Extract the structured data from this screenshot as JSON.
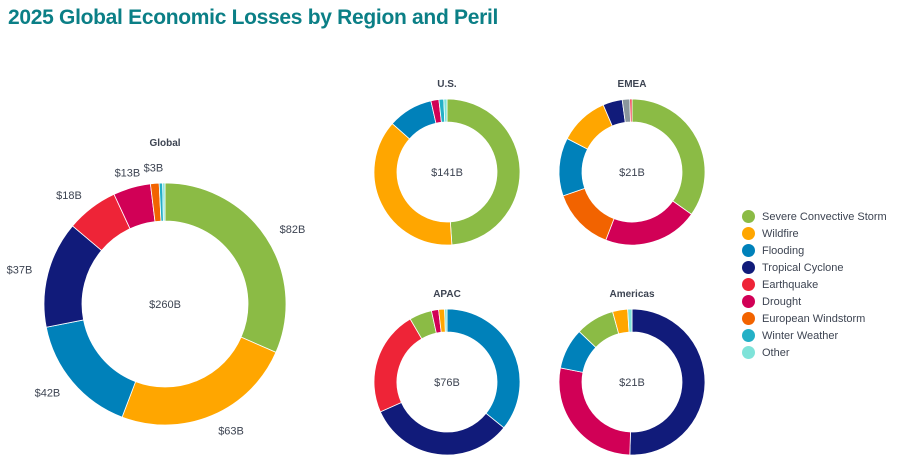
{
  "title": "2025 Global Economic Losses by Region and Peril",
  "colors": {
    "Severe Convective Storm": "#8bbb45",
    "Wildfire": "#ffa600",
    "Flooding": "#0081ba",
    "Tropical Cyclone": "#111b7a",
    "Earthquake": "#ee2437",
    "Drought": "#d10056",
    "European Windstorm": "#f26300",
    "Winter Weather": "#24b0c6",
    "Other": "#7fe3d9",
    "Unlabeled": "#8a969c"
  },
  "legend": [
    "Severe Convective Storm",
    "Wildfire",
    "Flooding",
    "Tropical Cyclone",
    "Earthquake",
    "Drought",
    "European Windstorm",
    "Winter Weather",
    "Other"
  ],
  "chart_data": [
    {
      "type": "pie",
      "variant": "donut",
      "title": "Global",
      "center_label": "$260B",
      "unit": "USD billions",
      "slices": [
        {
          "name": "Severe Convective Storm",
          "value": 82,
          "label": "$82B"
        },
        {
          "name": "Wildfire",
          "value": 63,
          "label": "$63B"
        },
        {
          "name": "Flooding",
          "value": 42,
          "label": "$42B"
        },
        {
          "name": "Tropical Cyclone",
          "value": 37,
          "label": "$37B"
        },
        {
          "name": "Earthquake",
          "value": 18,
          "label": "$18B"
        },
        {
          "name": "Drought",
          "value": 13,
          "label": "$13B"
        },
        {
          "name": "European Windstorm",
          "value": 3,
          "label": "$3B"
        },
        {
          "name": "Winter Weather",
          "value": 1.2
        },
        {
          "name": "Other",
          "value": 0.8
        }
      ]
    },
    {
      "type": "pie",
      "variant": "donut",
      "title": "U.S.",
      "center_label": "$141B",
      "unit": "USD billions",
      "slices": [
        {
          "name": "Severe Convective Storm",
          "value": 69
        },
        {
          "name": "Wildfire",
          "value": 53
        },
        {
          "name": "Flooding",
          "value": 14
        },
        {
          "name": "Drought",
          "value": 2.5
        },
        {
          "name": "Winter Weather",
          "value": 1.5
        },
        {
          "name": "Other",
          "value": 1
        }
      ]
    },
    {
      "type": "pie",
      "variant": "donut",
      "title": "EMEA",
      "center_label": "$21B",
      "unit": "USD billions",
      "slices": [
        {
          "name": "Severe Convective Storm",
          "value": 7.3
        },
        {
          "name": "Drought",
          "value": 4.4
        },
        {
          "name": "European Windstorm",
          "value": 2.9
        },
        {
          "name": "Flooding",
          "value": 2.7
        },
        {
          "name": "Wildfire",
          "value": 2.3
        },
        {
          "name": "Tropical Cyclone",
          "value": 0.9
        },
        {
          "name": "Unlabeled",
          "value": 0.35
        },
        {
          "name": "Earthquake",
          "value": 0.1
        }
      ]
    },
    {
      "type": "pie",
      "variant": "donut",
      "title": "APAC",
      "center_label": "$76B",
      "unit": "USD billions",
      "slices": [
        {
          "name": "Flooding",
          "value": 27.2
        },
        {
          "name": "Tropical Cyclone",
          "value": 24.7
        },
        {
          "name": "Earthquake",
          "value": 17.7
        },
        {
          "name": "Severe Convective Storm",
          "value": 3.8
        },
        {
          "name": "Drought",
          "value": 1.2
        },
        {
          "name": "Wildfire",
          "value": 1
        },
        {
          "name": "Other",
          "value": 0.4
        }
      ]
    },
    {
      "type": "pie",
      "variant": "donut",
      "title": "Americas",
      "center_label": "$21B",
      "unit": "USD billions",
      "slices": [
        {
          "name": "Tropical Cyclone",
          "value": 10.6
        },
        {
          "name": "Drought",
          "value": 5.8
        },
        {
          "name": "Flooding",
          "value": 1.9
        },
        {
          "name": "Severe Convective Storm",
          "value": 1.8
        },
        {
          "name": "Wildfire",
          "value": 0.7
        },
        {
          "name": "Other",
          "value": 0.2
        }
      ]
    }
  ]
}
